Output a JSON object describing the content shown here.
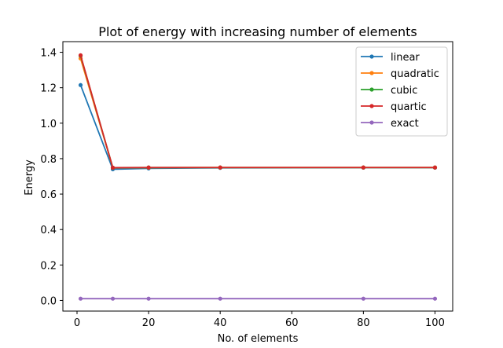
{
  "chart_data": {
    "type": "line",
    "title": "Plot of energy with increasing number of elements",
    "xlabel": "No. of elements",
    "ylabel": "Energy",
    "xlim": [
      -3.95,
      104.95
    ],
    "ylim": [
      -0.06,
      1.46
    ],
    "xticks": [
      0,
      20,
      40,
      60,
      80,
      100
    ],
    "yticks": [
      0.0,
      0.2,
      0.4,
      0.6,
      0.8,
      1.0,
      1.2,
      1.4
    ],
    "grid": false,
    "legend_position": "top-right",
    "x": [
      1,
      10,
      20,
      40,
      80,
      100
    ],
    "series": [
      {
        "name": "linear",
        "color": "#1f77b4",
        "values": [
          1.215,
          0.74,
          0.745,
          0.748,
          0.749,
          0.749
        ]
      },
      {
        "name": "quadratic",
        "color": "#ff7f0e",
        "values": [
          1.365,
          0.748,
          0.749,
          0.75,
          0.75,
          0.75
        ]
      },
      {
        "name": "cubic",
        "color": "#2ca02c",
        "values": [
          1.38,
          0.749,
          0.75,
          0.75,
          0.75,
          0.75
        ]
      },
      {
        "name": "quartic",
        "color": "#d62728",
        "values": [
          1.383,
          0.749,
          0.75,
          0.75,
          0.75,
          0.75
        ]
      },
      {
        "name": "exact",
        "color": "#9467bd",
        "values": [
          0.01,
          0.01,
          0.01,
          0.01,
          0.01,
          0.01
        ]
      }
    ]
  }
}
